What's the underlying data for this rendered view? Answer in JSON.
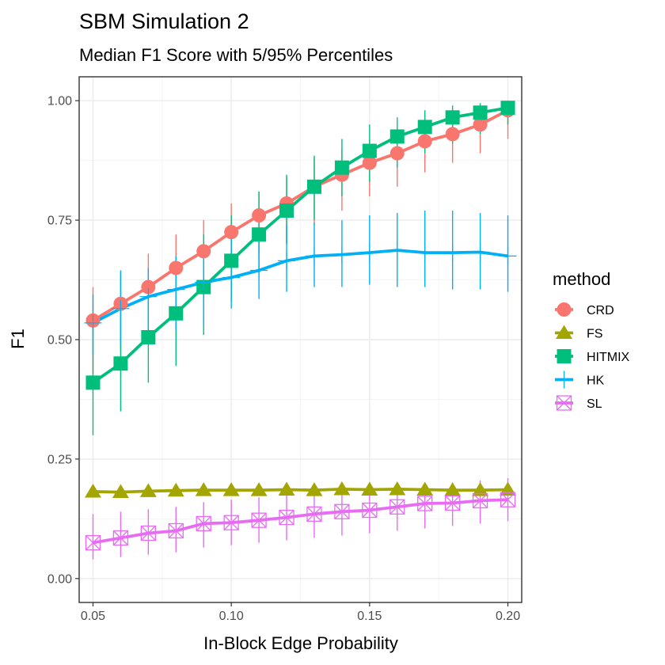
{
  "chart_data": {
    "type": "line",
    "title": "SBM Simulation 2",
    "subtitle": "Median F1 Score with 5/95% Percentiles",
    "xlabel": "In-Block Edge Probability",
    "ylabel": "F1",
    "xlim": [
      0.045,
      0.205
    ],
    "ylim": [
      -0.05,
      1.05
    ],
    "xticks": [
      0.05,
      0.1,
      0.15,
      0.2
    ],
    "xtick_labels": [
      "0.05",
      "0.10",
      "0.15",
      "0.20"
    ],
    "yticks": [
      0.0,
      0.25,
      0.5,
      0.75,
      1.0
    ],
    "ytick_labels": [
      "0.00",
      "0.25",
      "0.50",
      "0.75",
      "1.00"
    ],
    "grid": true,
    "legend_title": "method",
    "legend_position": "right",
    "x": [
      0.05,
      0.06,
      0.07,
      0.08,
      0.09,
      0.1,
      0.11,
      0.12,
      0.13,
      0.14,
      0.15,
      0.16,
      0.17,
      0.18,
      0.19,
      0.2
    ],
    "series": [
      {
        "name": "CRD",
        "color": "#F8766D",
        "marker": "circle",
        "values": [
          0.54,
          0.575,
          0.61,
          0.65,
          0.685,
          0.725,
          0.76,
          0.785,
          0.82,
          0.845,
          0.87,
          0.89,
          0.915,
          0.93,
          0.95,
          0.98
        ],
        "lower": [
          0.43,
          0.48,
          0.52,
          0.56,
          0.6,
          0.63,
          0.68,
          0.7,
          0.74,
          0.77,
          0.8,
          0.82,
          0.85,
          0.87,
          0.89,
          0.92
        ],
        "upper": [
          0.61,
          0.64,
          0.68,
          0.72,
          0.75,
          0.785,
          0.81,
          0.84,
          0.88,
          0.9,
          0.92,
          0.94,
          0.96,
          0.975,
          0.985,
          0.995
        ]
      },
      {
        "name": "FS",
        "color": "#A3A500",
        "marker": "triangle",
        "values": [
          0.182,
          0.181,
          0.183,
          0.184,
          0.185,
          0.185,
          0.185,
          0.186,
          0.185,
          0.187,
          0.186,
          0.187,
          0.186,
          0.185,
          0.185,
          0.186
        ],
        "lower": [
          0.175,
          0.175,
          0.176,
          0.177,
          0.178,
          0.178,
          0.178,
          0.178,
          0.178,
          0.179,
          0.179,
          0.179,
          0.179,
          0.178,
          0.178,
          0.179
        ],
        "upper": [
          0.19,
          0.19,
          0.191,
          0.192,
          0.193,
          0.193,
          0.193,
          0.194,
          0.193,
          0.195,
          0.194,
          0.195,
          0.194,
          0.193,
          0.193,
          0.194
        ]
      },
      {
        "name": "HITMIX",
        "color": "#00BF7D",
        "marker": "square",
        "values": [
          0.41,
          0.45,
          0.505,
          0.555,
          0.61,
          0.665,
          0.72,
          0.77,
          0.82,
          0.86,
          0.895,
          0.925,
          0.945,
          0.965,
          0.975,
          0.985
        ],
        "lower": [
          0.3,
          0.35,
          0.41,
          0.445,
          0.51,
          0.58,
          0.64,
          0.7,
          0.75,
          0.8,
          0.83,
          0.86,
          0.89,
          0.91,
          0.93,
          0.95
        ],
        "upper": [
          0.55,
          0.58,
          0.62,
          0.67,
          0.72,
          0.76,
          0.81,
          0.845,
          0.885,
          0.92,
          0.95,
          0.965,
          0.98,
          0.99,
          0.995,
          1.0
        ]
      },
      {
        "name": "HK",
        "color": "#00B0F6",
        "marker": "cross",
        "values": [
          0.535,
          0.565,
          0.59,
          0.605,
          0.62,
          0.63,
          0.645,
          0.665,
          0.675,
          0.678,
          0.682,
          0.687,
          0.682,
          0.682,
          0.683,
          0.675
        ],
        "lower": [
          0.47,
          0.49,
          0.51,
          0.52,
          0.53,
          0.565,
          0.585,
          0.6,
          0.61,
          0.61,
          0.615,
          0.61,
          0.61,
          0.605,
          0.605,
          0.6
        ],
        "upper": [
          0.595,
          0.645,
          0.65,
          0.675,
          0.7,
          0.72,
          0.72,
          0.74,
          0.745,
          0.75,
          0.76,
          0.765,
          0.77,
          0.77,
          0.765,
          0.76
        ]
      },
      {
        "name": "SL",
        "color": "#E76BF3",
        "marker": "square-cross",
        "values": [
          0.075,
          0.085,
          0.095,
          0.1,
          0.115,
          0.117,
          0.122,
          0.128,
          0.135,
          0.14,
          0.143,
          0.15,
          0.157,
          0.158,
          0.163,
          0.165
        ],
        "lower": [
          0.04,
          0.045,
          0.05,
          0.055,
          0.065,
          0.07,
          0.075,
          0.08,
          0.085,
          0.09,
          0.095,
          0.1,
          0.105,
          0.11,
          0.115,
          0.12
        ],
        "upper": [
          0.135,
          0.14,
          0.145,
          0.15,
          0.16,
          0.165,
          0.17,
          0.175,
          0.18,
          0.185,
          0.19,
          0.195,
          0.2,
          0.2,
          0.205,
          0.21
        ]
      }
    ]
  }
}
